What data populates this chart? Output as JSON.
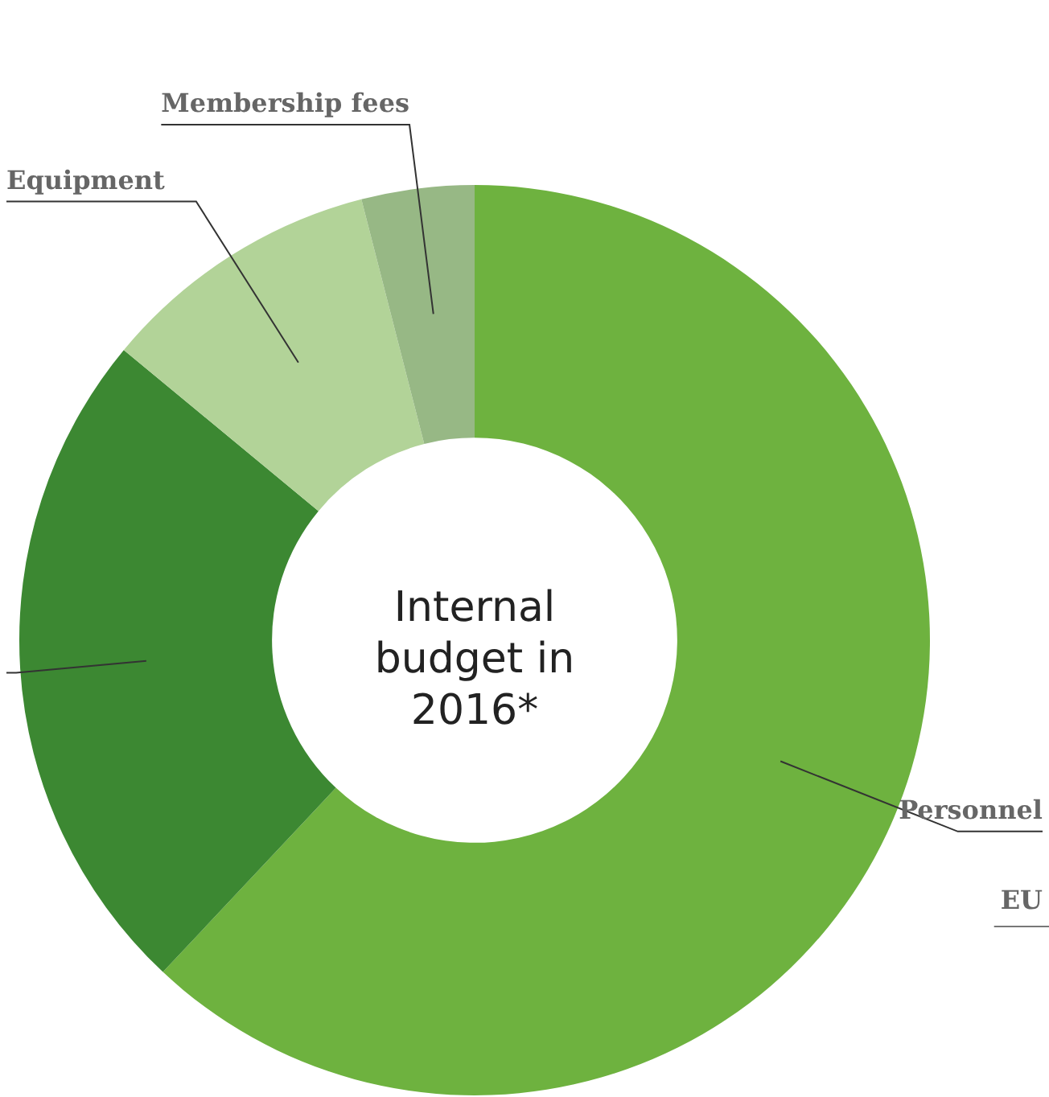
{
  "chart_data": {
    "type": "donut",
    "title": "Internal budget in 2016*",
    "categories": [
      "Personnel",
      null,
      "Equipment",
      "Membership fees"
    ],
    "values": [
      62,
      24,
      10,
      4
    ],
    "colors": [
      "#6eb23f",
      "#3c8832",
      "#b2d398",
      "#97b885"
    ],
    "annotations": [
      "EU"
    ]
  }
}
